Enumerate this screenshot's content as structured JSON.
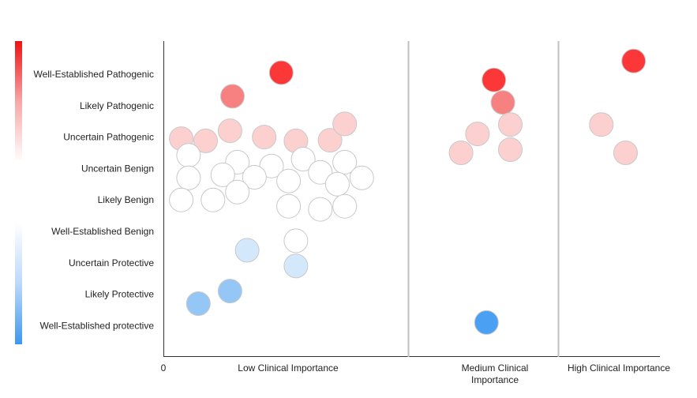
{
  "chart_data": {
    "type": "scatter",
    "title": "",
    "xlabel": "",
    "ylabel": "",
    "x_origin_label": "0",
    "x_groups": [
      {
        "label_lines": [
          "Low Clinical Importance"
        ]
      },
      {
        "label_lines": [
          "Medium Clinical",
          "Importance"
        ]
      },
      {
        "label_lines": [
          "High Clinical Importance"
        ]
      }
    ],
    "y_categories": [
      "Well-Established Pathogenic",
      "Likely Pathogenic",
      "Uncertain Pathogenic",
      "Uncertain Benign",
      "Likely Benign",
      "Well-Established Benign",
      "Uncertain Protective",
      "Likely Protective",
      "Well-Established protective"
    ],
    "color_scale": {
      "orientation": "vertical",
      "stops": [
        "#ee1111",
        "#f8a7a7",
        "#ffffff",
        "#ffffff",
        "#bcd8fb",
        "#3d97ee"
      ]
    },
    "grid": false,
    "legend": "left",
    "points": [
      {
        "group": 0,
        "offset": 0.48,
        "category": 0,
        "jitter": -0.05,
        "color": "#fb3737"
      },
      {
        "group": 0,
        "offset": 0.28,
        "category": 1,
        "jitter": -0.3,
        "color": "#f78080"
      },
      {
        "group": 0,
        "offset": 0.07,
        "category": 2,
        "jitter": 0.05,
        "color": "#fdd0d0"
      },
      {
        "group": 0,
        "offset": 0.17,
        "category": 2,
        "jitter": 0.12,
        "color": "#fdd0d0"
      },
      {
        "group": 0,
        "offset": 0.27,
        "category": 2,
        "jitter": -0.2,
        "color": "#fdd0d0"
      },
      {
        "group": 0,
        "offset": 0.41,
        "category": 2,
        "jitter": 0.0,
        "color": "#fdd0d0"
      },
      {
        "group": 0,
        "offset": 0.54,
        "category": 2,
        "jitter": 0.12,
        "color": "#fdd0d0"
      },
      {
        "group": 0,
        "offset": 0.68,
        "category": 2,
        "jitter": 0.1,
        "color": "#fdd0d0"
      },
      {
        "group": 0,
        "offset": 0.74,
        "category": 2,
        "jitter": -0.42,
        "color": "#fdd0d0"
      },
      {
        "group": 0,
        "offset": 0.1,
        "category": 3,
        "jitter": -0.42,
        "color": "#ffffff"
      },
      {
        "group": 0,
        "offset": 0.3,
        "category": 3,
        "jitter": -0.2,
        "color": "#ffffff"
      },
      {
        "group": 0,
        "offset": 0.44,
        "category": 3,
        "jitter": -0.08,
        "color": "#ffffff"
      },
      {
        "group": 0,
        "offset": 0.57,
        "category": 3,
        "jitter": -0.3,
        "color": "#ffffff"
      },
      {
        "group": 0,
        "offset": 0.64,
        "category": 3,
        "jitter": 0.12,
        "color": "#ffffff"
      },
      {
        "group": 0,
        "offset": 0.74,
        "category": 3,
        "jitter": -0.2,
        "color": "#ffffff"
      },
      {
        "group": 0,
        "offset": 0.1,
        "category": 3,
        "jitter": 0.3,
        "color": "#ffffff"
      },
      {
        "group": 0,
        "offset": 0.24,
        "category": 3,
        "jitter": 0.2,
        "color": "#ffffff"
      },
      {
        "group": 0,
        "offset": 0.37,
        "category": 3,
        "jitter": 0.28,
        "color": "#ffffff"
      },
      {
        "group": 0,
        "offset": 0.51,
        "category": 3,
        "jitter": 0.4,
        "color": "#ffffff"
      },
      {
        "group": 0,
        "offset": 0.71,
        "category": 3,
        "jitter": 0.5,
        "color": "#ffffff"
      },
      {
        "group": 0,
        "offset": 0.81,
        "category": 3,
        "jitter": 0.3,
        "color": "#ffffff"
      },
      {
        "group": 0,
        "offset": 0.07,
        "category": 4,
        "jitter": 0.0,
        "color": "#ffffff"
      },
      {
        "group": 0,
        "offset": 0.2,
        "category": 4,
        "jitter": 0.0,
        "color": "#ffffff"
      },
      {
        "group": 0,
        "offset": 0.3,
        "category": 4,
        "jitter": -0.25,
        "color": "#ffffff"
      },
      {
        "group": 0,
        "offset": 0.51,
        "category": 4,
        "jitter": 0.2,
        "color": "#ffffff"
      },
      {
        "group": 0,
        "offset": 0.64,
        "category": 4,
        "jitter": 0.3,
        "color": "#ffffff"
      },
      {
        "group": 0,
        "offset": 0.74,
        "category": 4,
        "jitter": 0.2,
        "color": "#ffffff"
      },
      {
        "group": 0,
        "offset": 0.54,
        "category": 5,
        "jitter": 0.3,
        "color": "#ffffff"
      },
      {
        "group": 0,
        "offset": 0.34,
        "category": 6,
        "jitter": -0.4,
        "color": "#d4e8fb"
      },
      {
        "group": 0,
        "offset": 0.54,
        "category": 6,
        "jitter": 0.1,
        "color": "#d4e8fb"
      },
      {
        "group": 0,
        "offset": 0.27,
        "category": 7,
        "jitter": -0.1,
        "color": "#95c7f6"
      },
      {
        "group": 0,
        "offset": 0.14,
        "category": 7,
        "jitter": 0.3,
        "color": "#95c7f6"
      },
      {
        "group": 1,
        "offset": 0.57,
        "category": 0,
        "jitter": 0.18,
        "color": "#fb3737"
      },
      {
        "group": 1,
        "offset": 0.63,
        "category": 1,
        "jitter": -0.1,
        "color": "#f78080"
      },
      {
        "group": 1,
        "offset": 0.68,
        "category": 2,
        "jitter": -0.4,
        "color": "#fdd0d0"
      },
      {
        "group": 1,
        "offset": 0.46,
        "category": 2,
        "jitter": -0.1,
        "color": "#fdd0d0"
      },
      {
        "group": 1,
        "offset": 0.35,
        "category": 2,
        "jitter": 0.5,
        "color": "#fdd0d0"
      },
      {
        "group": 1,
        "offset": 0.68,
        "category": 2,
        "jitter": 0.4,
        "color": "#fdd0d0"
      },
      {
        "group": 1,
        "offset": 0.52,
        "category": 8,
        "jitter": -0.1,
        "color": "#4aa0f2"
      },
      {
        "group": 2,
        "offset": 0.74,
        "category": 0,
        "jitter": -0.42,
        "color": "#fb3737"
      },
      {
        "group": 2,
        "offset": 0.42,
        "category": 2,
        "jitter": -0.4,
        "color": "#fdd0d0"
      },
      {
        "group": 2,
        "offset": 0.66,
        "category": 2,
        "jitter": 0.5,
        "color": "#fdd0d0"
      }
    ]
  }
}
